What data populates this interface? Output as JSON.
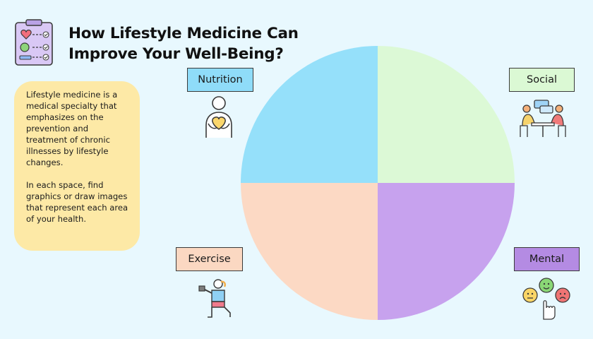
{
  "title_line1": "How Lifestyle Medicine Can",
  "title_line2": "Improve Your Well-Being?",
  "info": {
    "paragraph1": "Lifestyle medicine is a medical specialty that emphasizes on the prevention and treatment of chronic illnesses by lifestyle changes.",
    "paragraph2": "In each space, find graphics or draw images that represent each area of your health."
  },
  "labels": {
    "nutrition": "Nutrition",
    "social": "Social",
    "exercise": "Exercise",
    "mental": "Mental"
  },
  "quadrant_colors": {
    "nutrition": "#95e0fa",
    "social": "#dcf9d6",
    "exercise": "#fcd9c4",
    "mental": "#c7a2ee"
  },
  "icons": {
    "logo": "health-checklist-icon",
    "nutrition": "person-holding-heart-icon",
    "social": "people-talking-at-table-icon",
    "exercise": "person-lifting-dumbbell-icon",
    "mental": "mood-rating-faces-icon"
  }
}
